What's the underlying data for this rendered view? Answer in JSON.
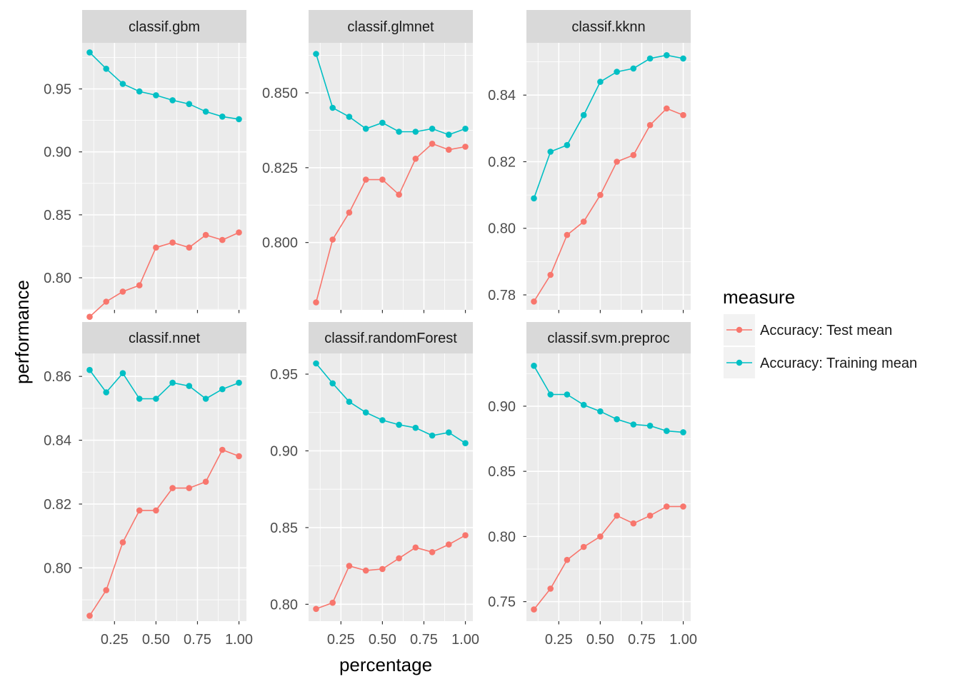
{
  "chart_data": {
    "type": "line",
    "xlabel": "percentage",
    "ylabel": "performance",
    "legend": {
      "title": "measure",
      "placement": "right",
      "entries": [
        "Accuracy: Test mean",
        "Accuracy: Training mean"
      ]
    },
    "colors": {
      "test": "#F8766D",
      "train": "#00BFC4",
      "panel_bg": "#EBEBEB",
      "strip_bg": "#D9D9D9"
    },
    "x": [
      0.1,
      0.2,
      0.3,
      0.4,
      0.5,
      0.6,
      0.7,
      0.8,
      0.9,
      1.0
    ],
    "x_ticks": [
      0.25,
      0.5,
      0.75,
      1.0
    ],
    "x_tick_labels": [
      "0.25",
      "0.50",
      "0.75",
      "1.00"
    ],
    "xlim": [
      0.055,
      1.045
    ],
    "panels": [
      {
        "title": "classif.gbm",
        "ylim": [
          0.7745,
          0.9866
        ],
        "y_ticks": [
          0.8,
          0.85,
          0.9,
          0.95
        ],
        "y_tick_labels": [
          "0.80",
          "0.85",
          "0.90",
          "0.95"
        ],
        "series": [
          {
            "name": "Accuracy: Test mean",
            "values": [
              0.769,
              0.781,
              0.789,
              0.794,
              0.824,
              0.828,
              0.824,
              0.834,
              0.83,
              0.836
            ]
          },
          {
            "name": "Accuracy: Training mean",
            "values": [
              0.979,
              0.966,
              0.954,
              0.948,
              0.945,
              0.941,
              0.938,
              0.932,
              0.928,
              0.926
            ]
          }
        ]
      },
      {
        "title": "classif.glmnet",
        "ylim": [
          0.7775,
          0.8667
        ],
        "y_ticks": [
          0.8,
          0.825,
          0.85
        ],
        "y_tick_labels": [
          "0.800",
          "0.825",
          "0.850"
        ],
        "series": [
          {
            "name": "Accuracy: Test mean",
            "values": [
              0.78,
              0.801,
              0.81,
              0.821,
              0.821,
              0.816,
              0.828,
              0.833,
              0.831,
              0.832
            ]
          },
          {
            "name": "Accuracy: Training mean",
            "values": [
              0.863,
              0.845,
              0.842,
              0.838,
              0.84,
              0.837,
              0.837,
              0.838,
              0.836,
              0.838
            ]
          }
        ]
      },
      {
        "title": "classif.kknn",
        "ylim": [
          0.7755,
          0.8557
        ],
        "y_ticks": [
          0.78,
          0.8,
          0.82,
          0.84
        ],
        "y_tick_labels": [
          "0.78",
          "0.80",
          "0.82",
          "0.84"
        ],
        "series": [
          {
            "name": "Accuracy: Test mean",
            "values": [
              0.778,
              0.786,
              0.798,
              0.802,
              0.81,
              0.82,
              0.822,
              0.831,
              0.836,
              0.834
            ]
          },
          {
            "name": "Accuracy: Training mean",
            "values": [
              0.809,
              0.823,
              0.825,
              0.834,
              0.844,
              0.847,
              0.848,
              0.851,
              0.852,
              0.851
            ]
          }
        ]
      },
      {
        "title": "classif.nnet",
        "ylim": [
          0.7833,
          0.8672
        ],
        "y_ticks": [
          0.8,
          0.82,
          0.84,
          0.86
        ],
        "y_tick_labels": [
          "0.80",
          "0.82",
          "0.84",
          "0.86"
        ],
        "series": [
          {
            "name": "Accuracy: Test mean",
            "values": [
              0.785,
              0.793,
              0.808,
              0.818,
              0.818,
              0.825,
              0.825,
              0.827,
              0.837,
              0.835
            ]
          },
          {
            "name": "Accuracy: Training mean",
            "values": [
              0.862,
              0.855,
              0.861,
              0.853,
              0.853,
              0.858,
              0.857,
              0.853,
              0.856,
              0.858
            ]
          }
        ]
      },
      {
        "title": "classif.randomForest",
        "ylim": [
          0.789,
          0.9635
        ],
        "y_ticks": [
          0.8,
          0.85,
          0.9,
          0.95
        ],
        "y_tick_labels": [
          "0.80",
          "0.85",
          "0.90",
          "0.95"
        ],
        "series": [
          {
            "name": "Accuracy: Test mean",
            "values": [
              0.797,
              0.801,
              0.825,
              0.822,
              0.823,
              0.83,
              0.837,
              0.834,
              0.839,
              0.845
            ]
          },
          {
            "name": "Accuracy: Training mean",
            "values": [
              0.957,
              0.944,
              0.932,
              0.925,
              0.92,
              0.917,
              0.915,
              0.91,
              0.912,
              0.905
            ]
          }
        ]
      },
      {
        "title": "classif.svm.preproc",
        "ylim": [
          0.735,
          0.9405
        ],
        "y_ticks": [
          0.75,
          0.8,
          0.85,
          0.9
        ],
        "y_tick_labels": [
          "0.75",
          "0.80",
          "0.85",
          "0.90"
        ],
        "series": [
          {
            "name": "Accuracy: Test mean",
            "values": [
              0.744,
              0.76,
              0.782,
              0.792,
              0.8,
              0.816,
              0.81,
              0.816,
              0.823,
              0.823
            ]
          },
          {
            "name": "Accuracy: Training mean",
            "values": [
              0.931,
              0.909,
              0.909,
              0.901,
              0.896,
              0.89,
              0.886,
              0.885,
              0.881,
              0.88
            ]
          }
        ]
      }
    ]
  }
}
